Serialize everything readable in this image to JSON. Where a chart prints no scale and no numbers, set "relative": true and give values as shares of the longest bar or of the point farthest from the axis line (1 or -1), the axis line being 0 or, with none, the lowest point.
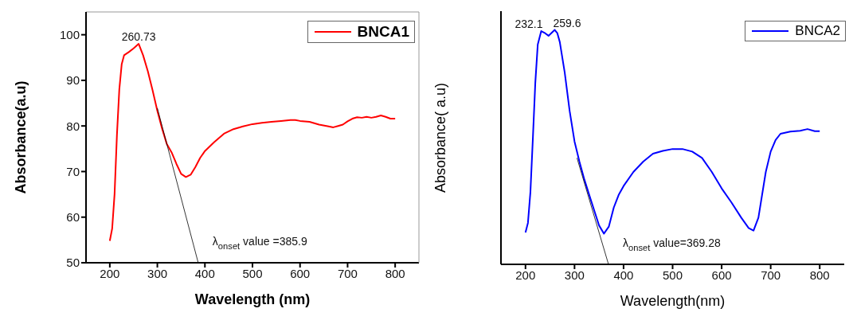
{
  "chart_data": [
    {
      "type": "line",
      "xlabel": "Wavelength (nm)",
      "ylabel": "Absorbance(a.u)",
      "xlim": [
        150,
        850
      ],
      "xticks": [
        200,
        300,
        400,
        500,
        600,
        700,
        800
      ],
      "ylim": [
        50,
        105
      ],
      "yticks": [
        50,
        60,
        70,
        80,
        90,
        100
      ],
      "legend": "top right",
      "series": [
        {
          "name": "BNCA1",
          "color": "#ff0000",
          "x": [
            200,
            205,
            210,
            215,
            220,
            225,
            230,
            240,
            250,
            260.73,
            270,
            280,
            290,
            300,
            310,
            320,
            330,
            340,
            350,
            360,
            370,
            380,
            390,
            400,
            420,
            440,
            460,
            480,
            500,
            520,
            540,
            560,
            580,
            590,
            600,
            620,
            640,
            660,
            670,
            680,
            690,
            700,
            710,
            720,
            730,
            740,
            750,
            760,
            770,
            780,
            790,
            800
          ],
          "values": [
            54.8,
            57.5,
            65,
            78,
            88,
            93.5,
            95.5,
            96.2,
            97,
            98,
            95.5,
            92,
            87.8,
            83.3,
            79.4,
            76,
            74.2,
            71.7,
            69.5,
            68.8,
            69.3,
            71,
            73,
            74.5,
            76.5,
            78.3,
            79.3,
            79.9,
            80.4,
            80.7,
            80.9,
            81.1,
            81.3,
            81.3,
            81.1,
            80.9,
            80.3,
            79.9,
            79.7,
            80,
            80.3,
            81,
            81.6,
            81.9,
            81.8,
            82,
            81.8,
            82,
            82.3,
            82,
            81.6,
            81.6
          ]
        },
        {
          "type": "line",
          "color": "#000000",
          "x": [
            300,
            385.9
          ],
          "values": [
            83.9,
            50
          ]
        }
      ],
      "annotations": [
        {
          "text": "260.73",
          "x": 260.73,
          "y": 98
        },
        {
          "text": "λ$_{onset}$ value =385.9",
          "x": 385.9,
          "y": 50
        }
      ]
    },
    {
      "type": "line",
      "relative": true,
      "xlabel": "Wavelength(nm)",
      "ylabel": "Absorbance( a.u)",
      "xlim": [
        150,
        850
      ],
      "xticks": [
        200,
        300,
        400,
        500,
        600,
        700,
        800
      ],
      "legend": "top right",
      "series": [
        {
          "name": "BNCA2",
          "color": "#0000ff",
          "x": [
            200,
            205,
            210,
            215,
            220,
            225,
            232.1,
            240,
            247,
            259.6,
            265,
            270,
            280,
            290,
            300,
            310,
            320,
            330,
            340,
            350,
            360,
            370,
            380,
            390,
            400,
            420,
            440,
            460,
            480,
            500,
            520,
            540,
            560,
            580,
            600,
            620,
            640,
            655,
            665,
            675,
            690,
            700,
            710,
            720,
            740,
            760,
            775,
            790,
            800
          ],
          "values": [
            0.136,
            0.177,
            0.307,
            0.535,
            0.774,
            0.937,
            0.995,
            0.986,
            0.975,
            1,
            0.986,
            0.948,
            0.818,
            0.655,
            0.524,
            0.438,
            0.362,
            0.296,
            0.231,
            0.166,
            0.131,
            0.161,
            0.242,
            0.296,
            0.334,
            0.394,
            0.438,
            0.472,
            0.484,
            0.492,
            0.492,
            0.481,
            0.454,
            0.394,
            0.324,
            0.264,
            0.199,
            0.155,
            0.144,
            0.199,
            0.394,
            0.481,
            0.53,
            0.557,
            0.566,
            0.57,
            0.577,
            0.568,
            0.568
          ]
        },
        {
          "type": "line",
          "color": "#000000",
          "x": [
            305,
            369.28
          ],
          "values": [
            0.454,
            0
          ]
        }
      ],
      "annotations": [
        {
          "text": "232.1",
          "x": 232.1,
          "y": 0.995
        },
        {
          "text": "259.6",
          "x": 259.6,
          "y": 1
        },
        {
          "text": "λ$_{onset}$ value=369.28",
          "x": 369.28,
          "y": 0
        }
      ]
    }
  ]
}
